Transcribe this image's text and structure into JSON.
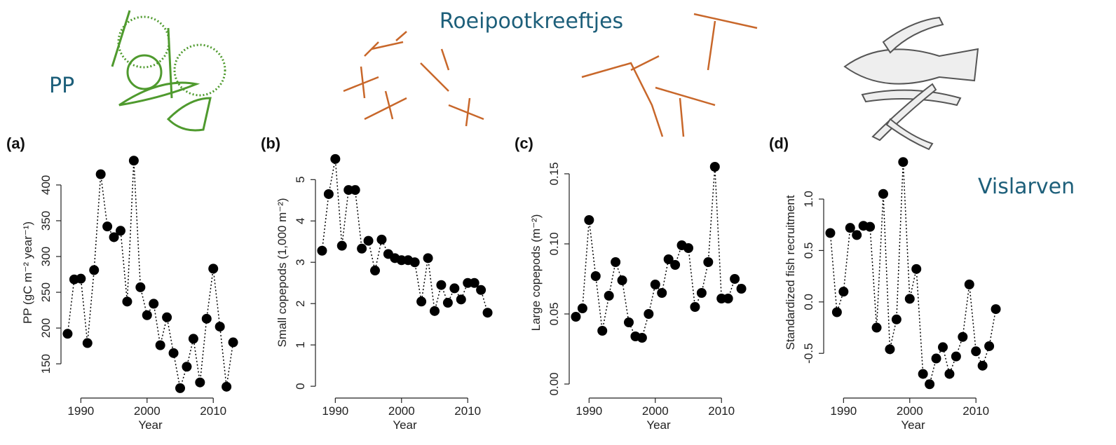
{
  "labels": [
    "PP",
    "Roeipootkreeftjes",
    "Vislarven"
  ],
  "chart_data": [
    {
      "type": "line",
      "panel_label": "(a)",
      "x_label": "Year",
      "y_label": "PP (gC m⁻² year⁻¹)",
      "color": "#000000",
      "x": [
        1988,
        1989,
        1990,
        1991,
        1992,
        1993,
        1994,
        1995,
        1996,
        1997,
        1998,
        1999,
        2000,
        2001,
        2002,
        2003,
        2004,
        2005,
        2006,
        2007,
        2008,
        2009,
        2010,
        2011,
        2012,
        2013
      ],
      "values": [
        192,
        268,
        269,
        179,
        281,
        415,
        342,
        327,
        336,
        237,
        434,
        257,
        218,
        234,
        176,
        215,
        165,
        116,
        146,
        185,
        124,
        213,
        283,
        202,
        118,
        180
      ],
      "xlim": [
        1987,
        2014
      ],
      "xticks": [
        1990,
        2000,
        2010
      ],
      "ylim": [
        110,
        445
      ],
      "yticks": [
        150,
        200,
        250,
        300,
        350,
        400
      ]
    },
    {
      "type": "line",
      "panel_label": "(b)",
      "x_label": "Year",
      "y_label": "Small copepods (1,000 m⁻²)",
      "color": "#000000",
      "x": [
        1988,
        1989,
        1990,
        1991,
        1992,
        1993,
        1994,
        1995,
        1996,
        1997,
        1998,
        1999,
        2000,
        2001,
        2002,
        2003,
        2004,
        2005,
        2006,
        2007,
        2008,
        2009,
        2010,
        2011,
        2012,
        2013
      ],
      "values": [
        3.28,
        4.65,
        5.5,
        3.4,
        4.75,
        4.75,
        3.33,
        3.52,
        2.8,
        3.55,
        3.2,
        3.1,
        3.05,
        3.05,
        3.0,
        2.05,
        3.1,
        1.82,
        2.45,
        2.02,
        2.37,
        2.1,
        2.5,
        2.5,
        2.33,
        1.78
      ],
      "xlim": [
        1987,
        2014
      ],
      "xticks": [
        1990,
        2000,
        2010
      ],
      "ylim": [
        -0.15,
        5.65
      ],
      "yticks": [
        0,
        1,
        2,
        3,
        4,
        5
      ]
    },
    {
      "type": "line",
      "panel_label": "(c)",
      "x_label": "Year",
      "y_label": "Large copepods (m⁻²)",
      "color": "#000000",
      "x": [
        1988,
        1989,
        1990,
        1991,
        1992,
        1993,
        1994,
        1995,
        1996,
        1997,
        1998,
        1999,
        2000,
        2001,
        2002,
        2003,
        2004,
        2005,
        2006,
        2007,
        2008,
        2009,
        2010,
        2011,
        2012,
        2013
      ],
      "values": [
        0.048,
        0.054,
        0.117,
        0.077,
        0.038,
        0.063,
        0.087,
        0.074,
        0.044,
        0.034,
        0.033,
        0.05,
        0.071,
        0.065,
        0.089,
        0.085,
        0.099,
        0.097,
        0.055,
        0.065,
        0.087,
        0.155,
        0.061,
        0.061,
        0.075,
        0.068
      ],
      "xlim": [
        1987,
        2014
      ],
      "xticks": [
        1990,
        2000,
        2010
      ],
      "ylim": [
        -0.006,
        0.165
      ],
      "yticks": [
        {
          "value": 0,
          "label": "0.00"
        },
        {
          "value": 0.05,
          "label": "0.05"
        },
        {
          "value": 0.1,
          "label": "0.10"
        },
        {
          "value": 0.15,
          "label": "0.15"
        }
      ]
    },
    {
      "type": "line",
      "panel_label": "(d)",
      "x_label": "Year",
      "y_label": "Standardized fish recruitment",
      "color": "#000000",
      "x": [
        1988,
        1989,
        1990,
        1991,
        1992,
        1993,
        1994,
        1995,
        1996,
        1997,
        1998,
        1999,
        2000,
        2001,
        2002,
        2003,
        2004,
        2005,
        2006,
        2007,
        2008,
        2009,
        2010,
        2011,
        2012,
        2013
      ],
      "values": [
        0.67,
        -0.1,
        0.1,
        0.72,
        0.65,
        0.74,
        0.73,
        -0.25,
        1.05,
        -0.46,
        -0.17,
        1.36,
        0.03,
        0.32,
        -0.7,
        -0.8,
        -0.55,
        -0.44,
        -0.7,
        -0.53,
        -0.34,
        0.17,
        -0.48,
        -0.62,
        -0.43,
        -0.07
      ],
      "xlim": [
        1987,
        2014
      ],
      "xticks": [
        1990,
        2000,
        2010
      ],
      "ylim": [
        -0.88,
        1.45
      ],
      "yticks": [
        -0.5,
        {
          "value": 0,
          "label": "0.0"
        },
        0.5,
        {
          "value": 1,
          "label": "1.0"
        }
      ]
    }
  ]
}
